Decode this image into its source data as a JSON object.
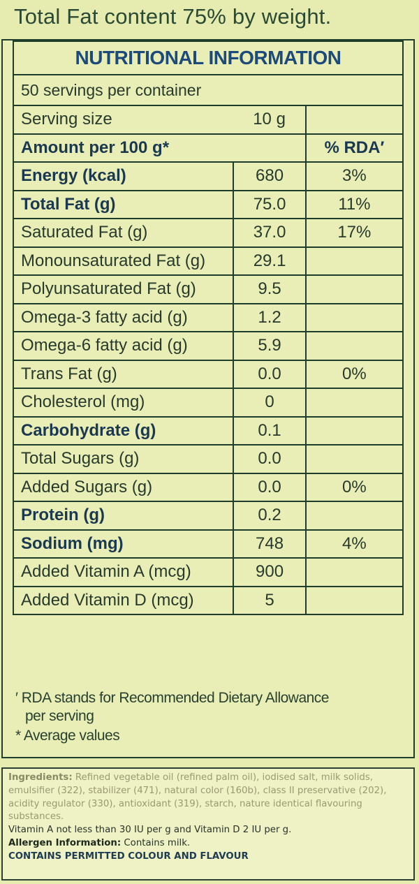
{
  "headline": "Total Fat content 75% by weight.",
  "table": {
    "title": "NUTRITIONAL INFORMATION",
    "servings_per_container": "50  servings per container",
    "serving_size_label": "Serving size",
    "serving_size_value": "10 g",
    "amount_label": "Amount per 100 g*",
    "rda_header": "% RDA′",
    "rows": [
      {
        "name": "Energy (kcal)",
        "value": "680",
        "rda": "3%",
        "bold": true
      },
      {
        "name": "Total Fat (g)",
        "value": "75.0",
        "rda": "11%",
        "bold": true
      },
      {
        "name": "Saturated Fat (g)",
        "value": "37.0",
        "rda": "17%",
        "bold": false
      },
      {
        "name": "Monounsaturated Fat (g)",
        "value": "29.1",
        "rda": "",
        "bold": false
      },
      {
        "name": "Polyunsaturated Fat (g)",
        "value": "9.5",
        "rda": "",
        "bold": false
      },
      {
        "name": "Omega-3 fatty acid (g)",
        "value": "1.2",
        "rda": "",
        "bold": false
      },
      {
        "name": "Omega-6 fatty acid (g)",
        "value": "5.9",
        "rda": "",
        "bold": false
      },
      {
        "name": "Trans Fat (g)",
        "value": "0.0",
        "rda": "0%",
        "bold": false
      },
      {
        "name": "Cholesterol (mg)",
        "value": "0",
        "rda": "",
        "bold": false
      },
      {
        "name": "Carbohydrate (g)",
        "value": "0.1",
        "rda": "",
        "bold": true
      },
      {
        "name": "Total Sugars (g)",
        "value": "0.0",
        "rda": "",
        "bold": false
      },
      {
        "name": "Added Sugars (g)",
        "value": "0.0",
        "rda": "0%",
        "bold": false
      },
      {
        "name": "Protein (g)",
        "value": "0.2",
        "rda": "",
        "bold": true
      },
      {
        "name": "Sodium (mg)",
        "value": "748",
        "rda": "4%",
        "bold": true
      },
      {
        "name": "Added Vitamin A (mcg)",
        "value": "900",
        "rda": "",
        "bold": false
      },
      {
        "name": "Added Vitamin D (mcg)",
        "value": "5",
        "rda": "",
        "bold": false
      }
    ]
  },
  "footnotes": {
    "rda_line1": "′ RDA stands for Recommended Dietary Allowance",
    "rda_line2": "per serving",
    "average": "* Average values"
  },
  "ingredients": {
    "label": "Ingredients:",
    "text": " Refined vegetable oil (refined palm oil), iodised salt, milk solids, emulsifier (322), stabilizer (471), natural color (160b), class II preservative (202), acidity regulator (330), antioxidant (319), starch, nature identical flavouring substances.",
    "vitamins": "Vitamin A not less than 30 IU per g and Vitamin D 2 IU per g.",
    "allergen_label": "Allergen Information:",
    "allergen_text": " Contains milk.",
    "permitted": "CONTAINS PERMITTED COLOUR AND FLAVOUR"
  },
  "colors": {
    "background": "#e6ebb0",
    "title_blue": "#1c4a7a",
    "border": "#1f3d2b"
  }
}
